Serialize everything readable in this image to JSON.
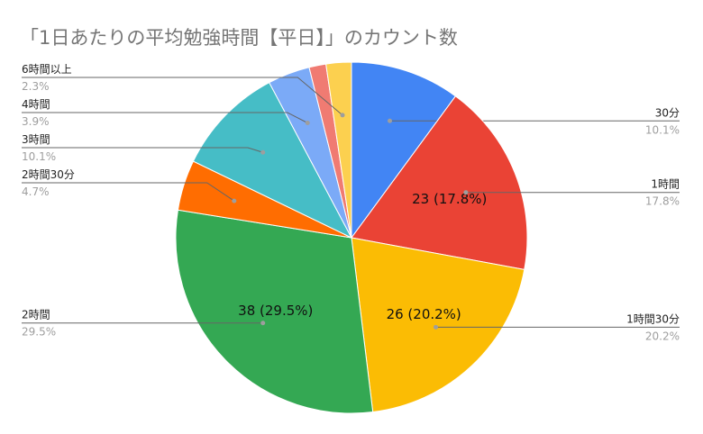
{
  "chart_data": {
    "type": "pie",
    "title": "「1日あたりの平均勉強時間【平日】」のカウント数",
    "slices": [
      {
        "label": "30分",
        "value": 13,
        "percent_label": "10.1%",
        "color": "#4285f4",
        "inner_label": ""
      },
      {
        "label": "1時間",
        "value": 23,
        "percent_label": "17.8%",
        "color": "#ea4335",
        "inner_label": "23 (17.8%)"
      },
      {
        "label": "1時間30分",
        "value": 26,
        "percent_label": "20.2%",
        "color": "#fbbc04",
        "inner_label": "26 (20.2%)"
      },
      {
        "label": "2時間",
        "value": 38,
        "percent_label": "29.5%",
        "color": "#34a853",
        "inner_label": "38 (29.5%)"
      },
      {
        "label": "2時間30分",
        "value": 6,
        "percent_label": "4.7%",
        "color": "#ff6d01",
        "inner_label": ""
      },
      {
        "label": "3時間",
        "value": 13,
        "percent_label": "10.1%",
        "color": "#46bdc6",
        "inner_label": ""
      },
      {
        "label": "4時間",
        "value": 5,
        "percent_label": "3.9%",
        "color": "#7baaf7",
        "inner_label": ""
      },
      {
        "label": "",
        "value": 2,
        "percent_label": "",
        "color": "#f07b72",
        "inner_label": ""
      },
      {
        "label": "6時間以上",
        "value": 3,
        "percent_label": "2.3%",
        "color": "#fcd04f",
        "inner_label": ""
      }
    ]
  }
}
